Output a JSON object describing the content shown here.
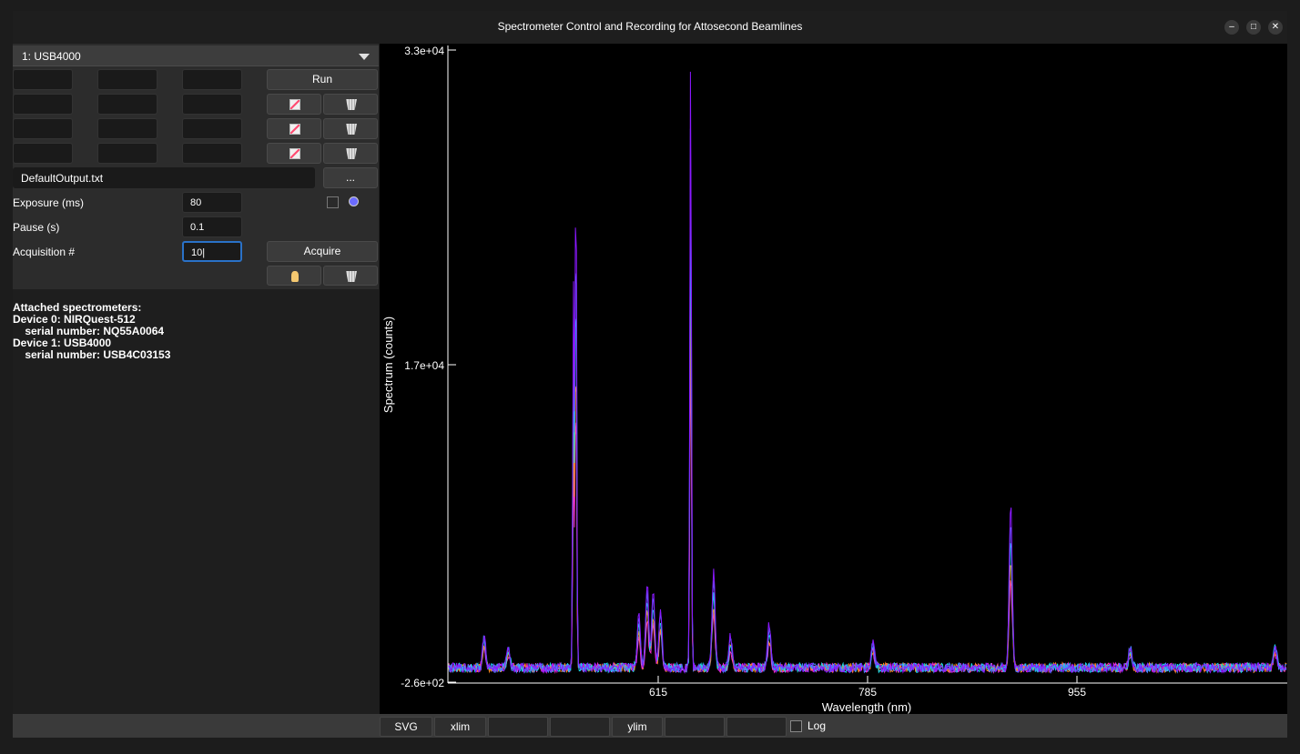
{
  "window": {
    "title": "Spectrometer Control and Recording for Attosecond Beamlines",
    "minimize_glyph": "–",
    "maximize_glyph": "□",
    "close_glyph": "✕"
  },
  "controls": {
    "device_select_value": "1: USB4000",
    "run_label": "Run",
    "output_file": "DefaultOutput.txt",
    "browse_label": "...",
    "exposure_label": "Exposure (ms)",
    "exposure_value": "80",
    "pause_label": "Pause (s)",
    "pause_value": "0.1",
    "acquisition_label": "Acquisition #",
    "acquisition_value": "10|",
    "acquire_label": "Acquire"
  },
  "console": {
    "lines": [
      "Attached spectrometers:",
      "Device 0: NIRQuest-512",
      "    serial number: NQ55A0064",
      "Device 1: USB4000",
      "    serial number: USB4C03153"
    ]
  },
  "plot": {
    "y_tick_labels": [
      "3.3e+04",
      "1.7e+04",
      "-2.6e+02"
    ],
    "x_tick_labels": [
      "615",
      "785",
      "955"
    ],
    "xlabel": "Wavelength (nm)",
    "ylabel": "Spectrum (counts)",
    "series_colors": [
      "#ff2bd6",
      "#ff8a1e",
      "#19d9e8",
      "#4a7dff",
      "#8a18ff"
    ]
  },
  "chart_data": {
    "type": "line",
    "xlabel": "Wavelength (nm)",
    "ylabel": "Spectrum (counts)",
    "xlim": [
      345,
      1040
    ],
    "ylim": [
      -260,
      33000
    ],
    "peaks": [
      {
        "x": 375,
        "y": 1700
      },
      {
        "x": 395,
        "y": 1200
      },
      {
        "x": 449,
        "y": 20000
      },
      {
        "x": 451,
        "y": 27000
      },
      {
        "x": 503,
        "y": 2800
      },
      {
        "x": 510,
        "y": 4500
      },
      {
        "x": 515,
        "y": 4200
      },
      {
        "x": 521,
        "y": 3200
      },
      {
        "x": 546,
        "y": 33000
      },
      {
        "x": 565,
        "y": 5100
      },
      {
        "x": 579,
        "y": 1700
      },
      {
        "x": 611,
        "y": 2300
      },
      {
        "x": 697,
        "y": 1500
      },
      {
        "x": 811,
        "y": 8600
      },
      {
        "x": 910,
        "y": 1200
      },
      {
        "x": 1030,
        "y": 1300
      }
    ],
    "baseline": 500
  },
  "bottom_bar": {
    "svg_label": "SVG",
    "xlim_label": "xlim",
    "ylim_label": "ylim",
    "log_label": "Log"
  }
}
